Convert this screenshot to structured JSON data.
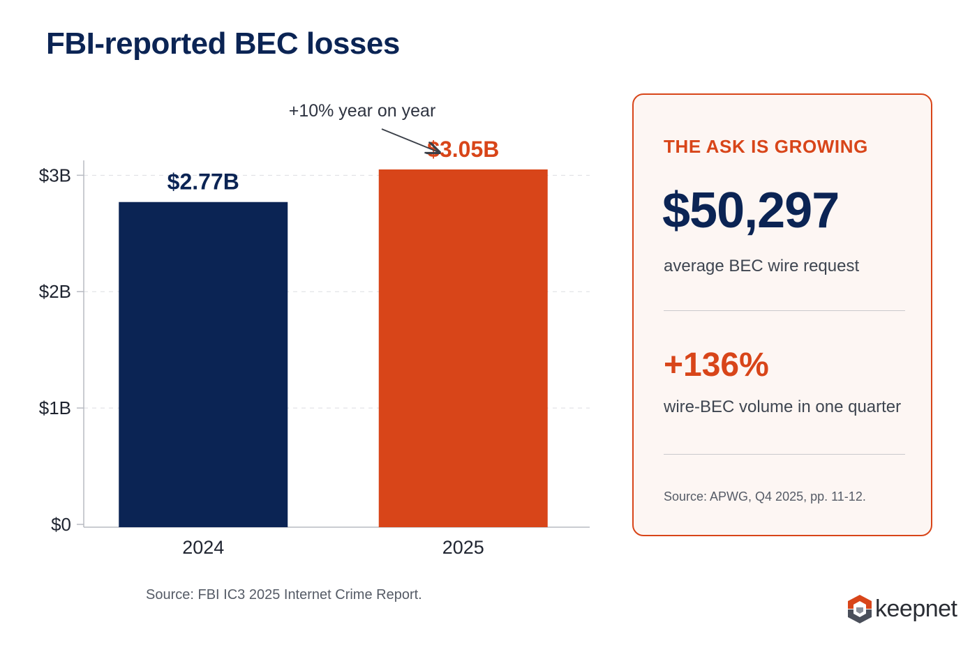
{
  "title": "FBI-reported BEC losses",
  "chart_data": {
    "type": "bar",
    "categories": [
      "2024",
      "2025"
    ],
    "values": [
      2.77,
      3.05
    ],
    "value_labels": [
      "$2.77B",
      "$3.05B"
    ],
    "bar_colors": [
      "#0b2454",
      "#d84519"
    ],
    "ylim": [
      0,
      3.05
    ],
    "y_ticks": [
      0,
      1,
      2,
      3
    ],
    "y_tick_labels": [
      "$0",
      "$1B",
      "$2B",
      "$3B"
    ],
    "grid": true,
    "annotation": "+10% year on year",
    "source": "Source: FBI IC3 2025 Internet Crime Report."
  },
  "card": {
    "kicker": "THE ASK IS GROWING",
    "big_value": "$50,297",
    "big_label": "average BEC wire request",
    "pct_value": "+136%",
    "pct_label": "wire-BEC volume in one quarter",
    "source": "Source: APWG, Q4 2025, pp. 11-12."
  },
  "logo": {
    "text": "keepnet"
  },
  "colors": {
    "navy": "#0b2454",
    "accent": "#d84519"
  }
}
